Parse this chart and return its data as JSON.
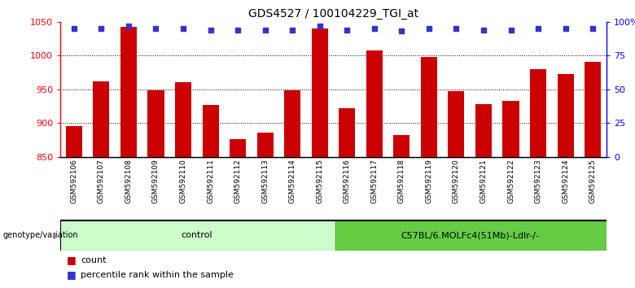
{
  "title": "GDS4527 / 100104229_TGI_at",
  "samples": [
    "GSM592106",
    "GSM592107",
    "GSM592108",
    "GSM592109",
    "GSM592110",
    "GSM592111",
    "GSM592112",
    "GSM592113",
    "GSM592114",
    "GSM592115",
    "GSM592116",
    "GSM592117",
    "GSM592118",
    "GSM592119",
    "GSM592120",
    "GSM592121",
    "GSM592122",
    "GSM592123",
    "GSM592124",
    "GSM592125"
  ],
  "counts": [
    895,
    962,
    1042,
    948,
    961,
    927,
    876,
    886,
    948,
    1040,
    922,
    1007,
    882,
    998,
    947,
    928,
    933,
    980,
    972,
    990
  ],
  "percentile_ranks": [
    95,
    95,
    97,
    95,
    95,
    94,
    94,
    94,
    94,
    97,
    94,
    95,
    93,
    95,
    95,
    94,
    94,
    95,
    95,
    95
  ],
  "ylim_left": [
    850,
    1050
  ],
  "ylim_right": [
    0,
    100
  ],
  "yticks_left": [
    850,
    900,
    950,
    1000,
    1050
  ],
  "yticks_right": [
    0,
    25,
    50,
    75,
    100
  ],
  "ytick_labels_right": [
    "0",
    "25",
    "50",
    "75",
    "100%"
  ],
  "bar_color": "#cc0000",
  "dot_color": "#3333cc",
  "grid_color": "#000000",
  "bar_width": 0.6,
  "n_control": 10,
  "n_treatment": 10,
  "control_label": "control",
  "treatment_label": "C57BL/6.MOLFc4(51Mb)-Ldlr-/-",
  "control_color": "#ccffcc",
  "treatment_color": "#66cc44",
  "genotype_label": "genotype/variation",
  "legend_count": "count",
  "legend_percentile": "percentile rank within the sample",
  "xticklabel_fontsize": 6.5,
  "bg_color": "#cccccc",
  "title_fontsize": 10
}
